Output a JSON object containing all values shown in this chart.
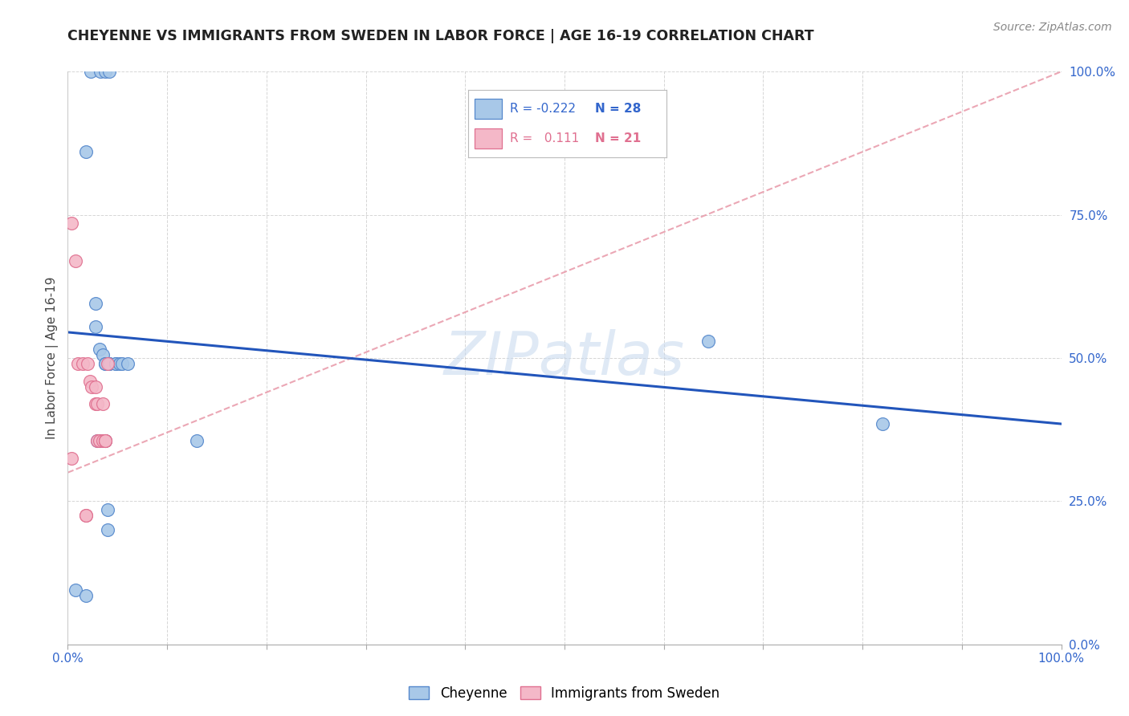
{
  "title": "CHEYENNE VS IMMIGRANTS FROM SWEDEN IN LABOR FORCE | AGE 16-19 CORRELATION CHART",
  "source": "Source: ZipAtlas.com",
  "ylabel": "In Labor Force | Age 16-19",
  "xlim": [
    0.0,
    1.0
  ],
  "ylim": [
    0.0,
    1.0
  ],
  "watermark": "ZIPatlas",
  "cheyenne_color": "#a8c8e8",
  "sweden_color": "#f4b8c8",
  "cheyenne_edge": "#5588cc",
  "sweden_edge": "#e07090",
  "trendline_cheyenne_color": "#2255bb",
  "trendline_sweden_color": "#e898a8",
  "legend_R_cheyenne": "-0.222",
  "legend_N_cheyenne": "28",
  "legend_R_sweden": "0.111",
  "legend_N_sweden": "21",
  "cheyenne_x": [
    0.008,
    0.023,
    0.033,
    0.038,
    0.042,
    0.018,
    0.028,
    0.028,
    0.032,
    0.035,
    0.038,
    0.038,
    0.042,
    0.042,
    0.048,
    0.048,
    0.052,
    0.055,
    0.06,
    0.03,
    0.032,
    0.038,
    0.13,
    0.018,
    0.04,
    0.04,
    0.645,
    0.82
  ],
  "cheyenne_y": [
    0.095,
    1.0,
    1.0,
    1.0,
    1.0,
    0.86,
    0.595,
    0.555,
    0.515,
    0.505,
    0.49,
    0.49,
    0.49,
    0.49,
    0.49,
    0.49,
    0.49,
    0.49,
    0.49,
    0.355,
    0.355,
    0.355,
    0.355,
    0.085,
    0.235,
    0.2,
    0.53,
    0.385
  ],
  "sweden_x": [
    0.004,
    0.008,
    0.01,
    0.015,
    0.02,
    0.022,
    0.024,
    0.028,
    0.028,
    0.03,
    0.03,
    0.032,
    0.035,
    0.035,
    0.038,
    0.038,
    0.038,
    0.04,
    0.004,
    0.018,
    0.018
  ],
  "sweden_y": [
    0.735,
    0.67,
    0.49,
    0.49,
    0.49,
    0.46,
    0.45,
    0.45,
    0.42,
    0.42,
    0.355,
    0.355,
    0.355,
    0.42,
    0.355,
    0.355,
    0.355,
    0.49,
    0.325,
    0.225,
    0.225
  ],
  "cheyenne_trendline_x": [
    0.0,
    1.0
  ],
  "cheyenne_trendline_y": [
    0.545,
    0.385
  ],
  "sweden_trendline_x": [
    0.0,
    1.0
  ],
  "sweden_trendline_y": [
    0.3,
    1.0
  ]
}
